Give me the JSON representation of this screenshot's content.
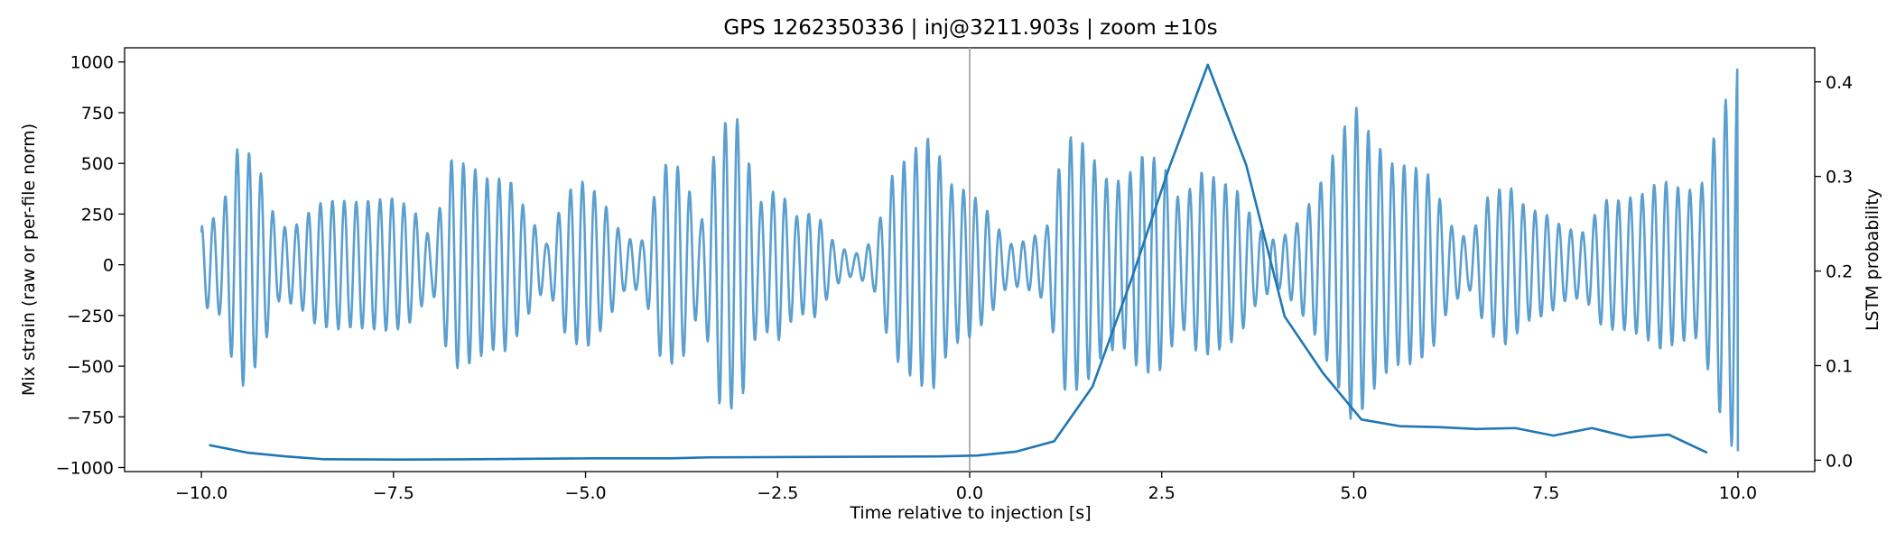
{
  "chart_data": {
    "type": "line",
    "title": "GPS 1262350336 | inj@3211.903s | zoom ±10s",
    "xlabel": "Time relative to injection [s]",
    "ylabel_left": "Mix strain (raw or per-file norm)",
    "ylabel_right": "LSTM probability",
    "xlim": [
      -11.0,
      11.0
    ],
    "ylim_left": [
      -1020,
      1070
    ],
    "ylim_right": [
      -0.012,
      0.436
    ],
    "x_ticks": [
      -10.0,
      -7.5,
      -5.0,
      -2.5,
      0.0,
      2.5,
      5.0,
      7.5,
      10.0
    ],
    "x_tick_labels": [
      "−10.0",
      "−7.5",
      "−5.0",
      "−2.5",
      "0.0",
      "2.5",
      "5.0",
      "7.5",
      "10.0"
    ],
    "y_left_ticks": [
      -1000,
      -750,
      -500,
      -250,
      0,
      250,
      500,
      750,
      1000
    ],
    "y_left_tick_labels": [
      "−1000",
      "−750",
      "−500",
      "−250",
      "0",
      "250",
      "500",
      "750",
      "1000"
    ],
    "y_right_ticks": [
      0.0,
      0.1,
      0.2,
      0.3,
      0.4
    ],
    "y_right_tick_labels": [
      "0.0",
      "0.1",
      "0.2",
      "0.3",
      "0.4"
    ],
    "injection_line_x": 0.0,
    "colors": {
      "strain": "#5a9fcf",
      "probability": "#1f77b4",
      "injection_line": "#b0b0b0",
      "axes": "#000000"
    },
    "strain_series": {
      "name": "strain",
      "axis": "left",
      "envelope": {
        "x": [
          -10.0,
          -9.75,
          -9.5,
          -9.25,
          -9.0,
          -8.75,
          -8.5,
          -8.25,
          -8.0,
          -7.75,
          -7.5,
          -7.25,
          -7.0,
          -6.75,
          -6.5,
          -6.25,
          -6.0,
          -5.75,
          -5.5,
          -5.25,
          -5.0,
          -4.75,
          -4.5,
          -4.25,
          -4.0,
          -3.75,
          -3.5,
          -3.25,
          -3.0,
          -2.75,
          -2.5,
          -2.25,
          -2.0,
          -1.75,
          -1.5,
          -1.25,
          -1.0,
          -0.75,
          -0.5,
          -0.25,
          0.0,
          0.25,
          0.5,
          0.75,
          1.0,
          1.25,
          1.5,
          1.75,
          2.0,
          2.25,
          2.5,
          2.75,
          3.0,
          3.25,
          3.5,
          3.75,
          4.0,
          4.25,
          4.5,
          4.75,
          5.0,
          5.25,
          5.5,
          5.75,
          6.0,
          6.25,
          6.5,
          6.75,
          7.0,
          7.25,
          7.5,
          7.75,
          8.0,
          8.25,
          8.5,
          8.75,
          9.0,
          9.25,
          9.5,
          9.75,
          10.0
        ],
        "amplitude": [
          200,
          250,
          620,
          480,
          180,
          200,
          300,
          320,
          310,
          320,
          330,
          280,
          120,
          520,
          490,
          420,
          430,
          250,
          100,
          360,
          420,
          300,
          130,
          120,
          500,
          480,
          200,
          700,
          720,
          300,
          380,
          240,
          260,
          100,
          50,
          120,
          450,
          560,
          640,
          400,
          360,
          260,
          100,
          120,
          180,
          640,
          600,
          430,
          410,
          540,
          520,
          300,
          460,
          420,
          360,
          180,
          110,
          200,
          350,
          560,
          800,
          620,
          500,
          490,
          440,
          200,
          120,
          340,
          400,
          280,
          250,
          180,
          160,
          320,
          320,
          350,
          420,
          380,
          360,
          720,
          980
        ]
      },
      "oscillation_period_s": 0.155,
      "x_start": -10.0,
      "x_end": 10.0,
      "start_value": 160
    },
    "probability_series": {
      "name": "LSTM probability",
      "axis": "right",
      "x": [
        -9.9,
        -9.4,
        -8.9,
        -8.4,
        -7.4,
        -6.4,
        -4.9,
        -3.9,
        -3.4,
        -0.4,
        0.1,
        0.6,
        1.1,
        1.6,
        2.1,
        2.6,
        3.1,
        3.6,
        4.1,
        4.6,
        5.1,
        5.6,
        6.1,
        6.6,
        7.1,
        7.6,
        8.1,
        8.6,
        9.1,
        9.6
      ],
      "y": [
        0.016,
        0.008,
        0.004,
        0.001,
        0.0007,
        0.001,
        0.002,
        0.002,
        0.003,
        0.004,
        0.005,
        0.009,
        0.02,
        0.078,
        0.19,
        0.31,
        0.418,
        0.312,
        0.152,
        0.092,
        0.043,
        0.036,
        0.035,
        0.033,
        0.034,
        0.026,
        0.034,
        0.024,
        0.027,
        0.008
      ]
    }
  }
}
